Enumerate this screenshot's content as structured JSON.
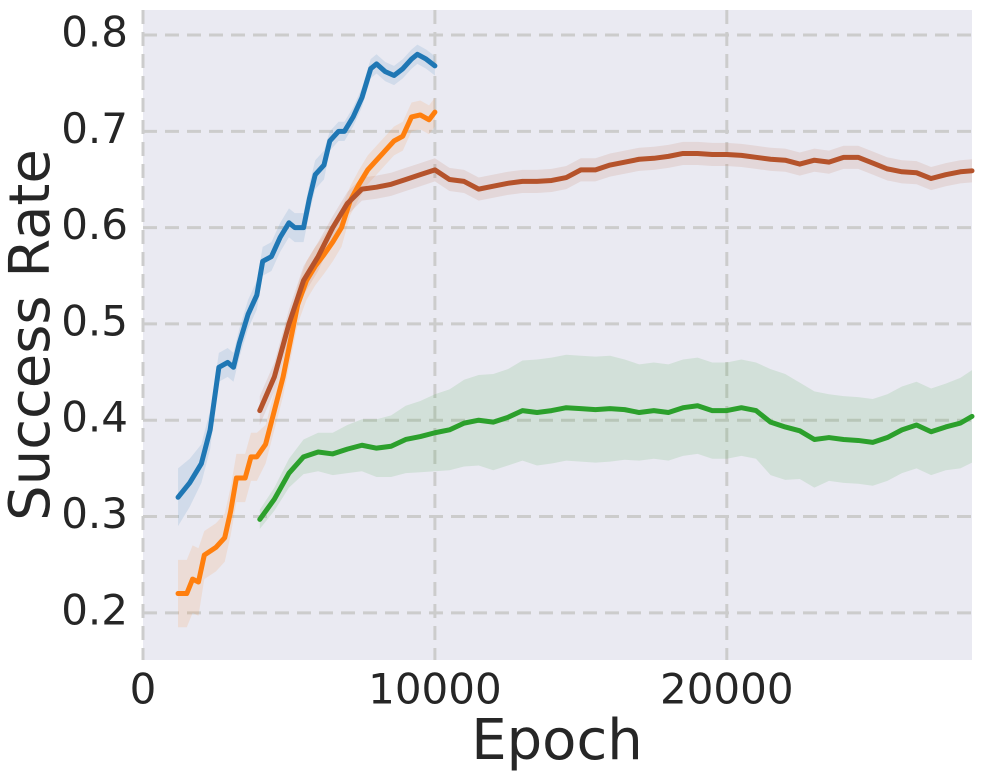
{
  "chart_data": {
    "type": "line",
    "x_label": "Epoch",
    "y_label": "Success Rate",
    "xlim": [
      0,
      28400
    ],
    "ylim": [
      0.151,
      0.826
    ],
    "xticks": [
      0,
      10000,
      20000
    ],
    "yticks": [
      0.2,
      0.3,
      0.4,
      0.5,
      0.6,
      0.7,
      0.8
    ],
    "grid": true,
    "series": [
      {
        "color": "#1f77b4",
        "x": [
          1200,
          1600,
          2000,
          2300,
          2600,
          2900,
          3100,
          3300,
          3600,
          3900,
          4100,
          4400,
          4700,
          5000,
          5200,
          5500,
          5700,
          5900,
          6200,
          6400,
          6700,
          6900,
          7200,
          7500,
          7800,
          8000,
          8300,
          8600,
          8900,
          9200,
          9400,
          9700,
          10000
        ],
        "values": [
          0.32,
          0.335,
          0.355,
          0.39,
          0.455,
          0.46,
          0.455,
          0.48,
          0.51,
          0.53,
          0.565,
          0.57,
          0.59,
          0.605,
          0.6,
          0.6,
          0.63,
          0.655,
          0.665,
          0.69,
          0.7,
          0.7,
          0.715,
          0.735,
          0.765,
          0.77,
          0.762,
          0.758,
          0.765,
          0.775,
          0.78,
          0.775,
          0.768
        ],
        "errors": [
          0.03,
          0.025,
          0.02,
          0.02,
          0.015,
          0.015,
          0.015,
          0.015,
          0.015,
          0.015,
          0.015,
          0.015,
          0.015,
          0.015,
          0.015,
          0.015,
          0.015,
          0.015,
          0.015,
          0.01,
          0.01,
          0.01,
          0.01,
          0.01,
          0.01,
          0.01,
          0.01,
          0.01,
          0.01,
          0.01,
          0.01,
          0.01,
          0.01
        ]
      },
      {
        "color": "#ff7f0e",
        "x": [
          1200,
          1500,
          1700,
          1900,
          2100,
          2500,
          2800,
          3000,
          3200,
          3500,
          3700,
          3900,
          4200,
          4500,
          4800,
          5000,
          5300,
          5600,
          5900,
          6200,
          6500,
          6800,
          7100,
          7400,
          7700,
          8000,
          8300,
          8600,
          8900,
          9200,
          9500,
          9800,
          10000
        ],
        "values": [
          0.22,
          0.22,
          0.235,
          0.232,
          0.26,
          0.268,
          0.278,
          0.305,
          0.34,
          0.34,
          0.362,
          0.362,
          0.375,
          0.41,
          0.445,
          0.475,
          0.52,
          0.545,
          0.56,
          0.572,
          0.585,
          0.6,
          0.628,
          0.645,
          0.66,
          0.67,
          0.68,
          0.69,
          0.695,
          0.715,
          0.717,
          0.712,
          0.72
        ],
        "errors": [
          0.035,
          0.035,
          0.035,
          0.035,
          0.025,
          0.025,
          0.025,
          0.025,
          0.025,
          0.025,
          0.025,
          0.025,
          0.02,
          0.02,
          0.02,
          0.02,
          0.02,
          0.02,
          0.02,
          0.02,
          0.02,
          0.02,
          0.015,
          0.015,
          0.015,
          0.015,
          0.015,
          0.015,
          0.015,
          0.015,
          0.015,
          0.015,
          0.015
        ]
      },
      {
        "color": "#b5532b",
        "x": [
          4000,
          4500,
          5000,
          5500,
          6000,
          6500,
          7000,
          7500,
          8000,
          8500,
          9000,
          9500,
          10000,
          10500,
          11000,
          11500,
          12000,
          12500,
          13000,
          13500,
          14000,
          14500,
          15000,
          15500,
          16000,
          16500,
          17000,
          17500,
          18000,
          18500,
          19000,
          19500,
          20000,
          20500,
          21000,
          21500,
          22000,
          22500,
          23000,
          23500,
          24000,
          24500,
          25000,
          25500,
          26000,
          26500,
          27000,
          27500,
          28000,
          28400
        ],
        "values": [
          0.41,
          0.445,
          0.5,
          0.545,
          0.57,
          0.6,
          0.625,
          0.64,
          0.642,
          0.645,
          0.65,
          0.655,
          0.66,
          0.65,
          0.648,
          0.64,
          0.643,
          0.646,
          0.648,
          0.648,
          0.649,
          0.652,
          0.66,
          0.66,
          0.665,
          0.668,
          0.671,
          0.672,
          0.674,
          0.677,
          0.677,
          0.676,
          0.676,
          0.675,
          0.673,
          0.671,
          0.67,
          0.666,
          0.67,
          0.668,
          0.673,
          0.673,
          0.667,
          0.661,
          0.658,
          0.657,
          0.651,
          0.655,
          0.658,
          0.659
        ],
        "errors": [
          0.015,
          0.015,
          0.015,
          0.015,
          0.015,
          0.012,
          0.012,
          0.012,
          0.012,
          0.012,
          0.012,
          0.012,
          0.012,
          0.012,
          0.012,
          0.012,
          0.012,
          0.012,
          0.012,
          0.012,
          0.012,
          0.012,
          0.012,
          0.012,
          0.012,
          0.012,
          0.012,
          0.012,
          0.012,
          0.012,
          0.012,
          0.012,
          0.012,
          0.012,
          0.012,
          0.012,
          0.012,
          0.012,
          0.012,
          0.012,
          0.012,
          0.012,
          0.012,
          0.012,
          0.012,
          0.012,
          0.012,
          0.012,
          0.012,
          0.012
        ]
      },
      {
        "color": "#2ca02c",
        "x": [
          4000,
          4500,
          5000,
          5500,
          6000,
          6500,
          7000,
          7500,
          8000,
          8500,
          9000,
          9500,
          10000,
          10500,
          11000,
          11500,
          12000,
          12500,
          13000,
          13500,
          14000,
          14500,
          15000,
          15500,
          16000,
          16500,
          17000,
          17500,
          18000,
          18500,
          19000,
          19500,
          20000,
          20500,
          21000,
          21500,
          22000,
          22500,
          23000,
          23500,
          24000,
          24500,
          25000,
          25500,
          26000,
          26500,
          27000,
          27500,
          28000,
          28400
        ],
        "values": [
          0.297,
          0.318,
          0.345,
          0.362,
          0.367,
          0.365,
          0.37,
          0.374,
          0.371,
          0.373,
          0.38,
          0.383,
          0.387,
          0.39,
          0.397,
          0.4,
          0.398,
          0.403,
          0.41,
          0.408,
          0.41,
          0.413,
          0.412,
          0.411,
          0.412,
          0.411,
          0.408,
          0.41,
          0.408,
          0.413,
          0.415,
          0.41,
          0.41,
          0.413,
          0.41,
          0.398,
          0.393,
          0.389,
          0.38,
          0.382,
          0.38,
          0.379,
          0.377,
          0.382,
          0.39,
          0.395,
          0.388,
          0.393,
          0.397,
          0.404
        ],
        "errors": [
          0.01,
          0.012,
          0.015,
          0.018,
          0.02,
          0.022,
          0.025,
          0.027,
          0.03,
          0.032,
          0.035,
          0.037,
          0.04,
          0.042,
          0.045,
          0.047,
          0.05,
          0.05,
          0.052,
          0.055,
          0.055,
          0.055,
          0.055,
          0.055,
          0.055,
          0.052,
          0.05,
          0.05,
          0.05,
          0.05,
          0.05,
          0.05,
          0.05,
          0.05,
          0.05,
          0.055,
          0.055,
          0.05,
          0.05,
          0.045,
          0.045,
          0.045,
          0.045,
          0.045,
          0.045,
          0.045,
          0.045,
          0.045,
          0.047,
          0.048
        ]
      }
    ]
  }
}
